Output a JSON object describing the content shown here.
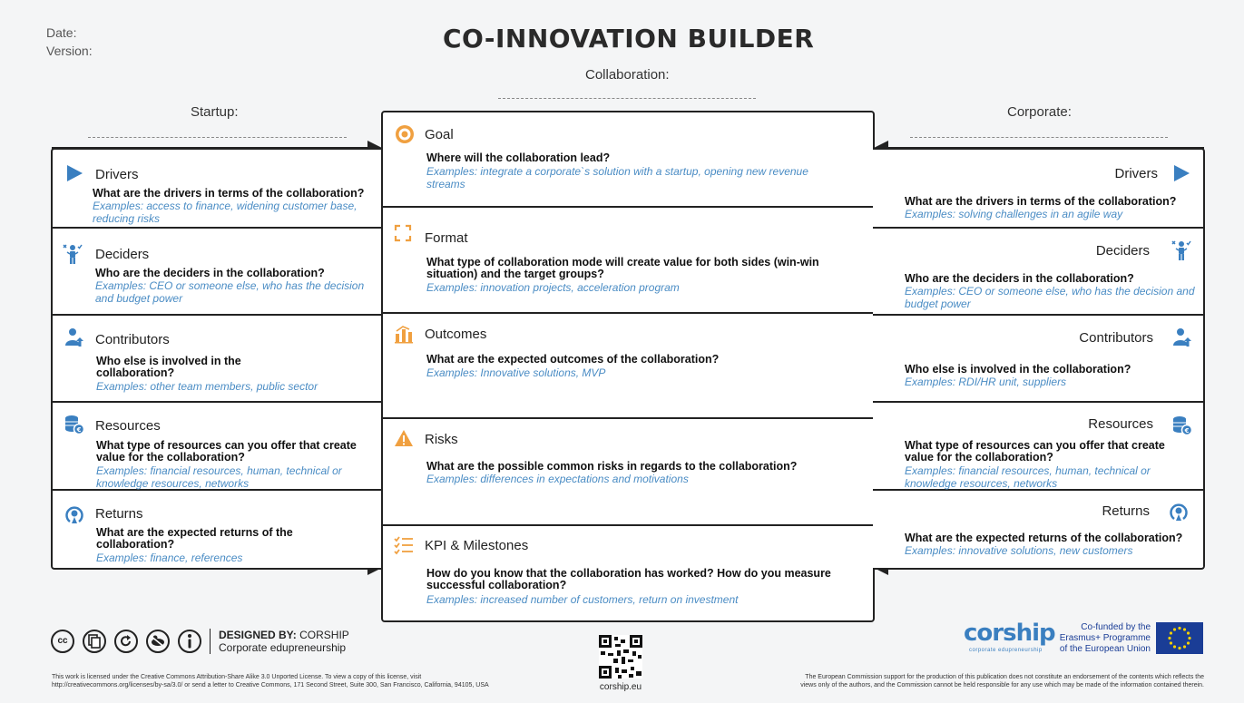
{
  "header": {
    "date_label": "Date:",
    "version_label": "Version:",
    "title": "CO-INNOVATION BUILDER",
    "collaboration_label": "Collaboration:",
    "startup_label": "Startup:",
    "corporate_label": "Corporate:"
  },
  "center": {
    "goal": {
      "title": "Goal",
      "question": "Where will the collaboration lead?",
      "example": "Examples: integrate a corporate`s solution with a startup, opening new revenue streams",
      "icon": "target-icon"
    },
    "format": {
      "title": "Format",
      "question": "What type of collaboration mode will create value for both sides (win-win situation) and the target groups?",
      "example": "Examples: innovation projects, acceleration program",
      "icon": "frame-icon"
    },
    "outcomes": {
      "title": "Outcomes",
      "question": "What are the expected outcomes of the collaboration?",
      "example": "Examples: Innovative solutions, MVP",
      "icon": "bar-chart-icon"
    },
    "risks": {
      "title": "Risks",
      "question": "What are the possible common risks in regards to the collaboration?",
      "example": "Examples: differences in expectations and motivations",
      "icon": "warning-icon"
    },
    "kpi": {
      "title": "KPI & Milestones",
      "question": "How do you know that the collaboration has worked? How do you measure successful collaboration?",
      "example": "Examples: increased number of customers, return on investment",
      "icon": "checklist-icon"
    }
  },
  "startup": [
    {
      "title": "Drivers",
      "question": "What are the drivers in terms of the collaboration?",
      "example": "Examples: access to finance, widening customer base, reducing risks"
    },
    {
      "title": "Deciders",
      "question": "Who are the deciders in the collaboration?",
      "example": "Examples: CEO or someone else, who has the decision and budget power"
    },
    {
      "title": "Contributors",
      "question": "Who else is involved in the collaboration?",
      "example": "Examples: other team members, public sector"
    },
    {
      "title": "Resources",
      "question": "What type of resources can you offer that create value for the collaboration?",
      "example": "Examples: financial resources, human, technical or knowledge resources, networks"
    },
    {
      "title": "Returns",
      "question": "What are the expected returns of the collaboration?",
      "example": "Examples: finance, references"
    }
  ],
  "corporate": [
    {
      "title": "Drivers",
      "question": "What are the drivers in terms of the collaboration?",
      "example": "Examples: solving challenges in an agile way"
    },
    {
      "title": "Deciders",
      "question": "Who are the deciders in the collaboration?",
      "example": "Examples: CEO or someone else, who has the decision and budget power"
    },
    {
      "title": "Contributors",
      "question": "Who else is involved in the collaboration?",
      "example": "Examples: RDI/HR unit, suppliers"
    },
    {
      "title": "Resources",
      "question": "What type of resources can you offer that create value for the collaboration?",
      "example": "Examples: financial resources, human, technical or knowledge resources, networks"
    },
    {
      "title": "Returns",
      "question": "What are the expected returns of the collaboration?",
      "example": "Examples: innovative solutions, new customers"
    }
  ],
  "footer": {
    "designed_by_bold": "DESIGNED BY:",
    "designed_by_name": "CORSHIP",
    "designed_by_sub": "Corporate edupreneurship",
    "license_line1": "This work is licensed under the Creative Commons Attribution-Share Alike 3.0 Unported License. To view a copy of this license, visit",
    "license_line2": "http://creativecommons.org/licenses/by-sa/3.0/ or send a letter to Creative Commons, 171 Second Street, Suite 300, San Francisco, California, 94105, USA",
    "qr_caption": "corship.eu",
    "logo_text": "corship",
    "logo_sub": "corporate edupreneurship",
    "eu_line1": "Co-funded by the",
    "eu_line2": "Erasmus+ Programme",
    "eu_line3": "of the European Union",
    "disclaimer_line1": "The European Commission support for the production of this publication does not constitute an endorsement of the contents which reflects the",
    "disclaimer_line2": "views only of the authors, and the Commission cannot be held responsible for any use which may be made of the information contained therein.",
    "cc_icons": [
      "cc",
      "copy",
      "share-alike",
      "no-derivatives",
      "info"
    ]
  },
  "colors": {
    "accent_orange": "#f0a040",
    "accent_blue": "#3a7fc0",
    "example_blue": "#4a8cc4",
    "eu_blue": "#1a3d96",
    "eu_yellow": "#f5d000"
  }
}
